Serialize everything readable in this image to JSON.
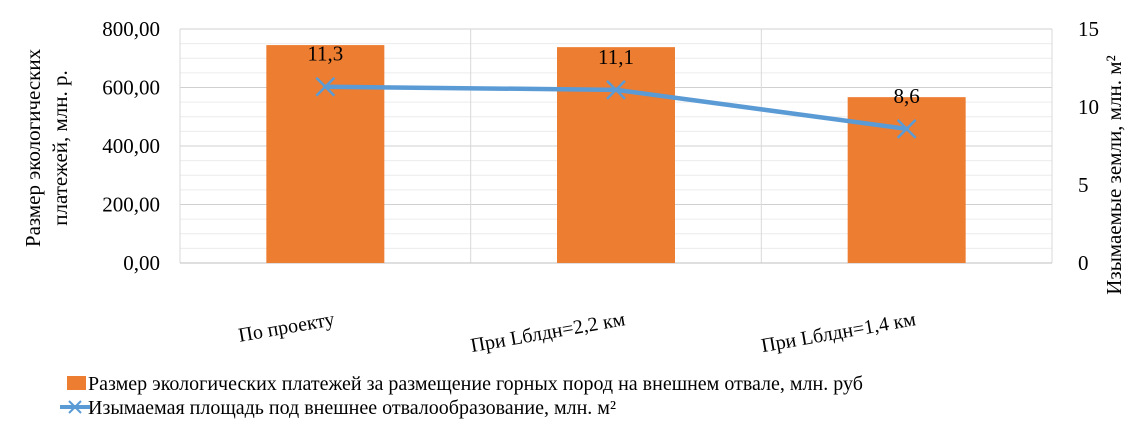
{
  "chart_data": {
    "type": "bar",
    "categories": [
      "По проекту",
      "При Lблдн=2,2 км",
      "При Lблдн=1,4 км"
    ],
    "series": [
      {
        "name": "Размер экологических платежей за размещение горных пород на внешнем отвале, млн. руб",
        "type": "bar",
        "axis": "left",
        "values": [
          745,
          738,
          567
        ],
        "color": "#ED7D31"
      },
      {
        "name": "Изымаемая площадь под внешнее отвалообразование, млн. м²",
        "type": "line",
        "axis": "right",
        "values": [
          11.3,
          11.1,
          8.6
        ],
        "data_labels": [
          "11,3",
          "11,1",
          "8,6"
        ],
        "color": "#5B9BD5",
        "marker": "x"
      }
    ],
    "ylabel_left": [
      "Размер экологических",
      "платежей, млн. р."
    ],
    "ylabel_right": "Изымаемые земли, млн. м²",
    "ylim_left": [
      0,
      800
    ],
    "yticks_left": [
      "0,00",
      "200,00",
      "400,00",
      "600,00",
      "800,00"
    ],
    "ylim_right": [
      0,
      15
    ],
    "yticks_right": [
      "0",
      "5",
      "10",
      "15"
    ],
    "grid": true,
    "legend_position": "bottom"
  }
}
